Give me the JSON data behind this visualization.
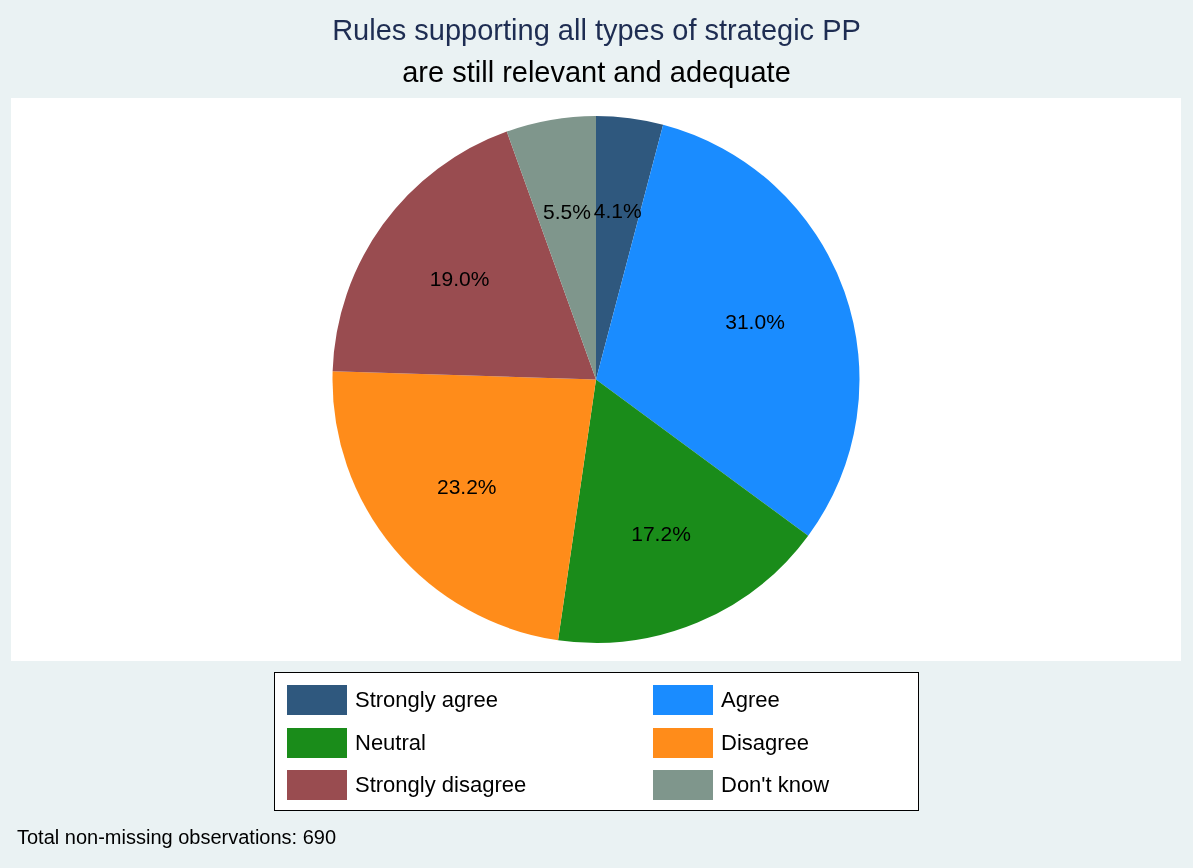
{
  "chart_data": {
    "type": "pie",
    "title": "Rules supporting all types of strategic PP",
    "subtitle": "are still relevant and adequate",
    "categories": [
      "Strongly agree",
      "Agree",
      "Neutral",
      "Disagree",
      "Strongly disagree",
      "Don't know"
    ],
    "values": [
      4.1,
      31.0,
      17.2,
      23.2,
      19.0,
      5.5
    ],
    "value_labels": [
      "4.1%",
      "31.0%",
      "17.2%",
      "23.2%",
      "19.0%",
      "5.5%"
    ],
    "colors": [
      "#2f587e",
      "#1a8cff",
      "#1a8c1a",
      "#ff8c1a",
      "#994c50",
      "#7f968c"
    ],
    "legend": "bottom",
    "annotations": [
      "Total non-missing observations: 690"
    ]
  }
}
